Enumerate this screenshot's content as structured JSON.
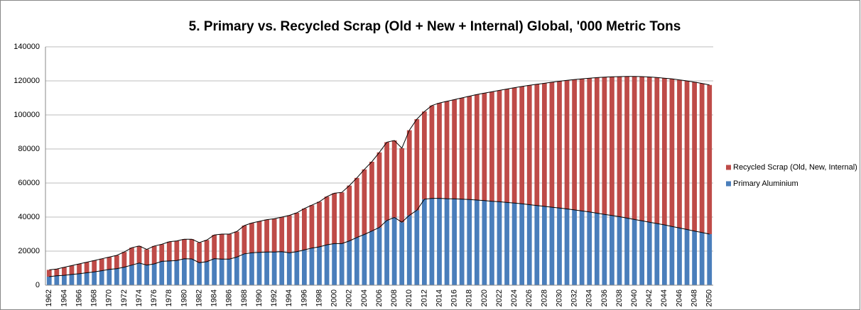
{
  "chart_data": {
    "type": "stacked-bar",
    "title": "5. Primary vs. Recycled Scrap (Old + New + Internal) Global, '000 Metric Tons",
    "categories": [
      "1962",
      null,
      "1964",
      null,
      "1966",
      null,
      "1968",
      null,
      "1970",
      null,
      "1972",
      null,
      "1974",
      null,
      "1976",
      null,
      "1978",
      null,
      "1980",
      null,
      "1982",
      null,
      "1984",
      null,
      "1986",
      null,
      "1988",
      null,
      "1990",
      null,
      "1992",
      null,
      "1994",
      null,
      "1996",
      null,
      "1998",
      null,
      "2000",
      null,
      "2002",
      null,
      "2004",
      null,
      "2006",
      null,
      "2008",
      null,
      "2010",
      null,
      "2012",
      null,
      "2014",
      null,
      "2016",
      null,
      "2018",
      null,
      "2020",
      null,
      "2022",
      null,
      "2024",
      null,
      "2026",
      null,
      "2028",
      null,
      "2030",
      null,
      "2032",
      null,
      "2034",
      null,
      "2036",
      null,
      "2038",
      null,
      "2040",
      null,
      "2042",
      null,
      "2044",
      null,
      "2046",
      null,
      "2048",
      null,
      "2050"
    ],
    "series": [
      {
        "name": "Primary Aluminium",
        "color": "#4a7ebb",
        "values": [
          5000,
          5500,
          5800,
          6300,
          6700,
          7300,
          7800,
          8500,
          9300,
          9700,
          10600,
          11800,
          13000,
          11800,
          12500,
          14000,
          14200,
          14500,
          15500,
          15400,
          13200,
          13800,
          15600,
          15300,
          15300,
          16500,
          18400,
          19000,
          19300,
          19500,
          19500,
          19700,
          19000,
          19700,
          20700,
          21800,
          22500,
          23700,
          24400,
          24400,
          26000,
          28000,
          29800,
          31800,
          33900,
          38000,
          39800,
          37000,
          41000,
          44000,
          50500,
          51000,
          51000,
          50800,
          50700,
          50500,
          50300,
          50000,
          49700,
          49300,
          49000,
          48600,
          48200,
          47800,
          47300,
          46800,
          46300,
          45800,
          45300,
          44800,
          44200,
          43600,
          43000,
          42300,
          41600,
          40900,
          40200,
          39400,
          38600,
          37800,
          37000,
          36200,
          35400,
          34500,
          33600,
          32700,
          31800,
          30900,
          30000
        ]
      },
      {
        "name": "Recycled Scrap (Old, New, Internal)",
        "color": "#be4b48",
        "values": [
          4000,
          4000,
          4700,
          5200,
          5800,
          6200,
          6700,
          7000,
          7200,
          7800,
          8900,
          10200,
          10000,
          9200,
          10500,
          10000,
          11300,
          11500,
          11500,
          11600,
          11800,
          12700,
          13900,
          14700,
          14700,
          15000,
          16600,
          17500,
          18200,
          19000,
          19500,
          20300,
          22000,
          22800,
          24300,
          25200,
          26500,
          28300,
          29600,
          30100,
          32500,
          35000,
          38200,
          40700,
          44100,
          46000,
          45200,
          43500,
          50000,
          53500,
          51500,
          54500,
          56000,
          57200,
          58300,
          59500,
          60700,
          62000,
          63100,
          64300,
          65400,
          66600,
          67800,
          68900,
          70100,
          71200,
          72300,
          73400,
          74500,
          75500,
          76600,
          77600,
          78600,
          79600,
          80600,
          81500,
          82300,
          83200,
          84000,
          84700,
          85300,
          85800,
          86200,
          86700,
          87000,
          87300,
          87500,
          87600,
          87600
        ]
      }
    ],
    "ylim": [
      0,
      140000
    ],
    "yticks": [
      0,
      20000,
      40000,
      60000,
      80000,
      100000,
      120000,
      140000
    ],
    "grid": true,
    "legend": "right"
  }
}
